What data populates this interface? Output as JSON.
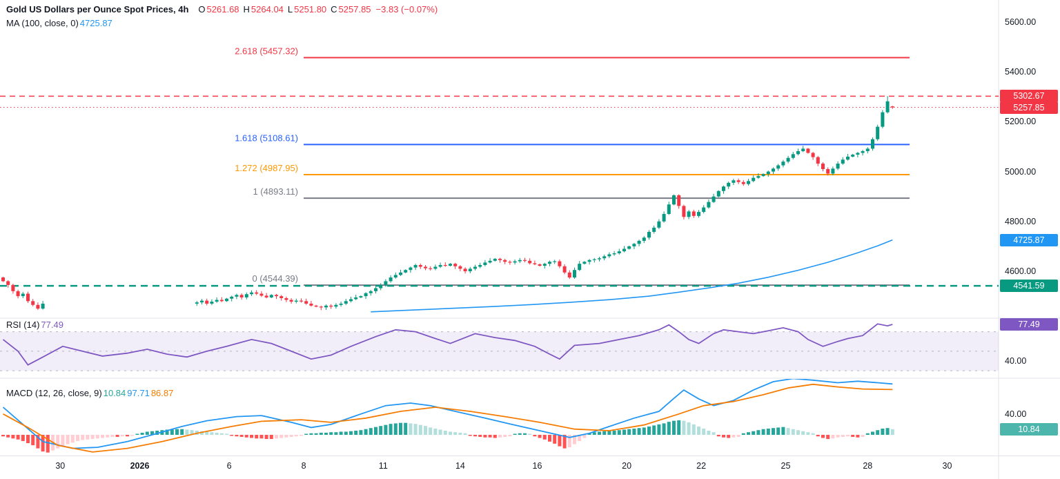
{
  "header": {
    "title": "Gold US Dollars per Ounce Spot Prices, 4h",
    "o_label": "O",
    "o_value": "5261.68",
    "h_label": "H",
    "h_value": "5264.04",
    "l_label": "L",
    "l_value": "5251.80",
    "c_label": "C",
    "c_value": "5257.85",
    "change": "−3.83 (−0.07%)",
    "ma_label": "MA (100, close, 0)",
    "ma_value": "4725.87"
  },
  "rsi_legend": {
    "label": "RSI (14)",
    "value": "77.49"
  },
  "macd_legend": {
    "label": "MACD (12, 26, close, 9)",
    "hist": "10.84",
    "macd": "97.71",
    "signal": "86.87"
  },
  "chart_data": {
    "type": "candlestick",
    "title": "Gold US Dollars per Ounce Spot Prices",
    "timeframe": "4h",
    "last_ohlc": {
      "open": 5261.68,
      "high": 5264.04,
      "low": 5251.8,
      "close": 5257.85,
      "change": -3.83,
      "change_pct": -0.07
    },
    "ma100": {
      "label": "MA (100, close, 0)",
      "last": 4725.87
    },
    "colors": {
      "up": "#089981",
      "down": "#f23645",
      "ma": "#2196f3",
      "rsi": "#7e57c2",
      "rsi_band": "rgba(126,87,194,0.10)",
      "band_line": "#b2b5be",
      "macd": "#2196f3",
      "signal": "#f57c00",
      "hist_up": "#26a69a",
      "hist_up_weak": "#b2dfdb",
      "hist_down": "#ff5252",
      "hist_down_weak": "#ffcdd2",
      "separator": "#e0e3eb",
      "axis_text": "#131722"
    },
    "fib_levels": [
      {
        "label": "2.618 (5457.32)",
        "value": 5457.32,
        "color": "#f23645"
      },
      {
        "label": "1.618 (5108.61)",
        "value": 5108.61,
        "color": "#2962ff"
      },
      {
        "label": "1.272 (4987.95)",
        "value": 4987.95,
        "color": "#ff9800"
      },
      {
        "label": "1 (4893.11)",
        "value": 4893.11,
        "color": "#787b86"
      },
      {
        "label": "0 (4544.39)",
        "value": 4544.39,
        "color": "#787b86"
      }
    ],
    "price_lines": [
      {
        "price": 5302.67,
        "style": "dashed",
        "color": "#f23645",
        "width": 1.5
      },
      {
        "price": 5257.85,
        "style": "dotted",
        "color": "#f23645",
        "width": 1
      },
      {
        "price": 4541.59,
        "style": "dashed",
        "color": "#089981",
        "width": 2.5
      }
    ],
    "y_axis": {
      "price_ticks": [
        {
          "label": "5600.00",
          "value": 5600
        },
        {
          "label": "5400.00",
          "value": 5400
        },
        {
          "label": "5200.00",
          "value": 5200
        },
        {
          "label": "5000.00",
          "value": 5000
        },
        {
          "label": "4800.00",
          "value": 4800
        },
        {
          "label": "4600.00",
          "value": 4600
        }
      ],
      "rsi_ticks": [
        {
          "label": "40.00",
          "value": 40
        }
      ],
      "macd_ticks": [
        {
          "label": "40.00",
          "value": 40
        }
      ],
      "badges": [
        {
          "label": "5302.67",
          "color": "#f23645",
          "pane": "price",
          "value": 5302.67
        },
        {
          "label": "5257.85",
          "color": "#f23645",
          "pane": "price",
          "value": 5257.85
        },
        {
          "label": "4725.87",
          "color": "#2196f3",
          "pane": "price",
          "value": 4725.87
        },
        {
          "label": "4541.59",
          "color": "#089981",
          "pane": "price",
          "value": 4541.59
        },
        {
          "label": "77.49",
          "color": "#7e57c2",
          "pane": "rsi",
          "value": 77.49
        },
        {
          "label": "10.84",
          "color": "#4db6ac",
          "pane": "macd",
          "value": 10.84
        }
      ]
    },
    "x_axis": {
      "ticks": [
        {
          "label": "30",
          "i": 11.5
        },
        {
          "label": "2026",
          "i": 27.5,
          "bold": true
        },
        {
          "label": "6",
          "i": 45.5
        },
        {
          "label": "8",
          "i": 60.5
        },
        {
          "label": "11",
          "i": 76.5
        },
        {
          "label": "14",
          "i": 92
        },
        {
          "label": "16",
          "i": 107.5
        },
        {
          "label": "20",
          "i": 125.5
        },
        {
          "label": "22",
          "i": 140.5
        },
        {
          "label": "25",
          "i": 157.5
        },
        {
          "label": "28",
          "i": 174
        },
        {
          "label": "30",
          "i": 190
        }
      ]
    },
    "candles": {
      "swing_high": {
        "index": 178,
        "price": 5302.67
      },
      "segments": [
        {
          "start": 0,
          "first_open": 4575,
          "closes": [
            4560,
            4545,
            4520,
            4500,
            4510,
            4480,
            4465,
            4450,
            4470
          ]
        },
        {
          "start": 39,
          "first_open": 4470,
          "closes": [
            4475,
            4482,
            4470,
            4478,
            4485,
            4480,
            4490,
            4498,
            4505,
            4495,
            4508,
            4515,
            4510,
            4502,
            4495,
            4505,
            4500,
            4492,
            4485,
            4478,
            4482,
            4480,
            4470,
            4462,
            4458,
            4455,
            4462,
            4458,
            4465,
            4470,
            4480,
            4488,
            4495,
            4500,
            4512,
            4520,
            4532,
            4545,
            4560,
            4575,
            4585,
            4595,
            4605,
            4615,
            4625,
            4618,
            4612,
            4610,
            4618,
            4625,
            4622,
            4630,
            4620,
            4610,
            4600,
            4610,
            4618,
            4625,
            4635,
            4642,
            4650,
            4645,
            4638,
            4635,
            4640,
            4645,
            4642,
            4632,
            4628,
            4622,
            4630,
            4638,
            4640,
            4620,
            4595,
            4575,
            4605,
            4630,
            4638,
            4645,
            4648,
            4652,
            4660,
            4668,
            4672,
            4680,
            4690,
            4700,
            4710,
            4722,
            4735,
            4758,
            4775,
            4800,
            4830,
            4868,
            4905,
            4862,
            4818,
            4840,
            4822,
            4838,
            4856,
            4878,
            4900,
            4922,
            4940,
            4955,
            4965,
            4958,
            4950,
            4962,
            4975,
            4982,
            4990,
            5000,
            5012,
            5025,
            5040,
            5055,
            5070,
            5082,
            5092,
            5075,
            5058,
            5032,
            5010,
            4992,
            5012,
            5032,
            5048,
            5060,
            5068,
            5075,
            5082,
            5092,
            5130,
            5180,
            5238,
            5282,
            5257.85
          ],
          "final_ohlc": [
            5261.68,
            5264.04,
            5251.8,
            5257.85
          ]
        }
      ]
    },
    "ma_line": [
      [
        74,
        4437
      ],
      [
        82,
        4444
      ],
      [
        90,
        4451
      ],
      [
        98,
        4458
      ],
      [
        106,
        4466
      ],
      [
        114,
        4475
      ],
      [
        122,
        4486
      ],
      [
        130,
        4500
      ],
      [
        136,
        4516
      ],
      [
        142,
        4533
      ],
      [
        148,
        4552
      ],
      [
        154,
        4576
      ],
      [
        160,
        4604
      ],
      [
        166,
        4636
      ],
      [
        172,
        4674
      ],
      [
        176,
        4702
      ],
      [
        179,
        4725.87
      ]
    ],
    "rsi": {
      "period": 14,
      "last": 77.49,
      "bands": [
        70,
        50,
        30
      ],
      "points": [
        [
          0,
          62
        ],
        [
          3,
          50
        ],
        [
          5,
          36
        ],
        [
          8,
          44
        ],
        [
          12,
          55
        ],
        [
          16,
          50
        ],
        [
          20,
          45
        ],
        [
          25,
          48
        ],
        [
          29,
          52
        ],
        [
          33,
          47
        ],
        [
          37,
          44
        ],
        [
          41,
          50
        ],
        [
          45,
          55
        ],
        [
          50,
          62
        ],
        [
          54,
          58
        ],
        [
          58,
          50
        ],
        [
          62,
          42
        ],
        [
          66,
          46
        ],
        [
          70,
          55
        ],
        [
          75,
          65
        ],
        [
          79,
          72
        ],
        [
          83,
          70
        ],
        [
          87,
          63
        ],
        [
          90,
          58
        ],
        [
          95,
          68
        ],
        [
          99,
          64
        ],
        [
          103,
          61
        ],
        [
          107,
          55
        ],
        [
          110,
          47
        ],
        [
          112,
          42
        ],
        [
          115,
          56
        ],
        [
          120,
          58
        ],
        [
          124,
          62
        ],
        [
          128,
          66
        ],
        [
          132,
          72
        ],
        [
          134,
          77
        ],
        [
          136,
          70
        ],
        [
          138,
          62
        ],
        [
          140,
          58
        ],
        [
          143,
          68
        ],
        [
          145,
          72
        ],
        [
          148,
          70
        ],
        [
          151,
          68
        ],
        [
          154,
          71
        ],
        [
          157,
          74
        ],
        [
          160,
          70
        ],
        [
          162,
          62
        ],
        [
          165,
          55
        ],
        [
          168,
          60
        ],
        [
          170,
          63
        ],
        [
          173,
          66
        ],
        [
          176,
          78
        ],
        [
          178,
          76
        ],
        [
          179,
          77.49
        ]
      ]
    },
    "macd": {
      "params": "12, 26, close, 9",
      "last_hist": 10.84,
      "last_macd": 97.71,
      "last_signal": 86.87,
      "hist": [
        -3,
        -5,
        -7,
        -9,
        -12,
        -16,
        -20,
        -26,
        -32,
        -34,
        -30,
        -26,
        -22,
        -18,
        -15,
        -12,
        -10,
        -9,
        -8,
        -7,
        -6,
        -5,
        -4,
        -4,
        -3,
        -3,
        -2,
        2,
        4,
        6,
        7,
        8,
        9,
        10,
        10,
        11,
        11,
        10,
        9,
        8,
        7,
        6,
        5,
        4,
        3,
        2,
        -2,
        -3,
        -4,
        -5,
        -6,
        -7,
        -7,
        -8,
        -8,
        -7,
        -6,
        -5,
        -4,
        -3,
        -2,
        2,
        3,
        3,
        4,
        4,
        5,
        5,
        6,
        6,
        7,
        8,
        9,
        11,
        13,
        15,
        17,
        19,
        21,
        22,
        23,
        23,
        22,
        21,
        19,
        17,
        14,
        12,
        10,
        8,
        6,
        5,
        4,
        3,
        -2,
        -3,
        -4,
        -5,
        -5,
        -6,
        -5,
        -4,
        -3,
        2,
        3,
        3,
        2,
        -3,
        -6,
        -9,
        -13,
        -17,
        -22,
        -26,
        -24,
        -18,
        -12,
        -6,
        3,
        5,
        6,
        7,
        8,
        8,
        9,
        10,
        11,
        12,
        13,
        14,
        16,
        18,
        20,
        22,
        25,
        27,
        28,
        27,
        24,
        20,
        16,
        12,
        8,
        5,
        -3,
        -5,
        -6,
        -5,
        -4,
        3,
        5,
        7,
        9,
        11,
        12,
        13,
        14,
        15,
        13,
        11,
        9,
        7,
        5,
        3,
        -3,
        -6,
        -8,
        -7,
        -5,
        -4,
        -3,
        -4,
        -5,
        -4,
        3,
        6,
        9,
        12,
        13,
        10.84
      ],
      "macd_points": [
        [
          0,
          53
        ],
        [
          4,
          20
        ],
        [
          8,
          -13
        ],
        [
          14,
          -26
        ],
        [
          19,
          -24
        ],
        [
          25,
          -13
        ],
        [
          30,
          0
        ],
        [
          36,
          16
        ],
        [
          41,
          27
        ],
        [
          47,
          35
        ],
        [
          52,
          37
        ],
        [
          58,
          24
        ],
        [
          62,
          14
        ],
        [
          66,
          20
        ],
        [
          72,
          40
        ],
        [
          77,
          56
        ],
        [
          82,
          61
        ],
        [
          86,
          56
        ],
        [
          91,
          45
        ],
        [
          97,
          32
        ],
        [
          102,
          21
        ],
        [
          108,
          8
        ],
        [
          114,
          -5
        ],
        [
          118,
          3
        ],
        [
          122,
          16
        ],
        [
          127,
          32
        ],
        [
          132,
          45
        ],
        [
          135,
          70
        ],
        [
          137,
          86
        ],
        [
          140,
          69
        ],
        [
          143,
          56
        ],
        [
          147,
          66
        ],
        [
          151,
          86
        ],
        [
          155,
          102
        ],
        [
          159,
          108
        ],
        [
          163,
          105
        ],
        [
          168,
          100
        ],
        [
          172,
          103
        ],
        [
          176,
          100
        ],
        [
          179,
          97.71
        ]
      ],
      "signal_points": [
        [
          0,
          40
        ],
        [
          5,
          14
        ],
        [
          11,
          -20
        ],
        [
          18,
          -33
        ],
        [
          25,
          -26
        ],
        [
          32,
          -13
        ],
        [
          39,
          3
        ],
        [
          46,
          16
        ],
        [
          52,
          26
        ],
        [
          60,
          29
        ],
        [
          66,
          24
        ],
        [
          73,
          32
        ],
        [
          80,
          45
        ],
        [
          87,
          53
        ],
        [
          94,
          45
        ],
        [
          101,
          35
        ],
        [
          108,
          24
        ],
        [
          115,
          11
        ],
        [
          122,
          8
        ],
        [
          129,
          19
        ],
        [
          136,
          40
        ],
        [
          141,
          56
        ],
        [
          147,
          64
        ],
        [
          153,
          77
        ],
        [
          158,
          90
        ],
        [
          163,
          97
        ],
        [
          168,
          92
        ],
        [
          173,
          88
        ],
        [
          179,
          86.87
        ]
      ]
    }
  }
}
